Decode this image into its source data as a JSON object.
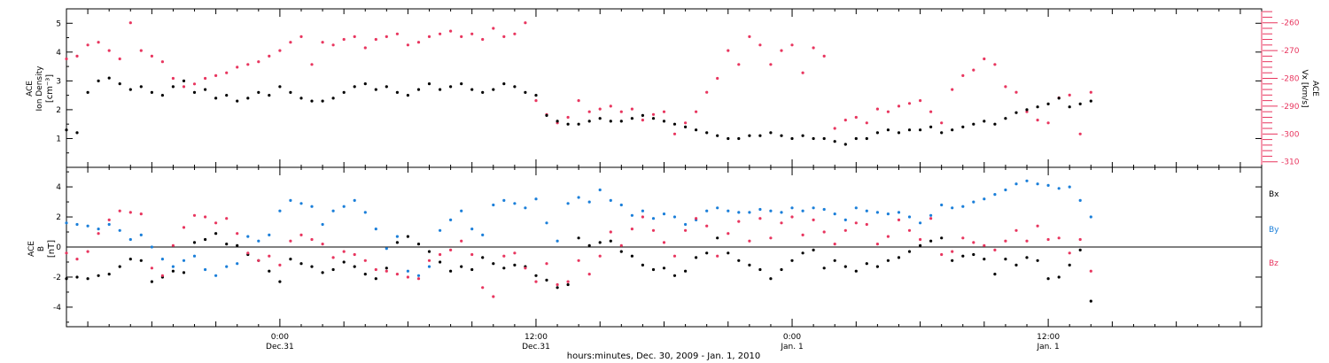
{
  "colors": {
    "ink": "#000000",
    "vx_series": "#e8365f",
    "by_series": "#1b7fd9",
    "bz_series": "#e8365f"
  },
  "chart_data": [
    {
      "type": "scatter",
      "panel": "plasma",
      "ylabel": [
        "ACE",
        "Ion Density",
        "[cm⁻³]"
      ],
      "ylim": [
        0,
        5.5
      ],
      "y_ticks": [
        1,
        2,
        3,
        4,
        5
      ],
      "xlim": [
        "2009-12-30 14:00",
        "2010-01-01 22:00"
      ],
      "right_axis": {
        "label": [
          "ACE",
          "Vx [km/s]"
        ],
        "ylim": [
          -312,
          -255
        ],
        "ticks": [
          -260,
          -270,
          -280,
          -290,
          -300,
          -310
        ]
      },
      "series": [
        {
          "axis": "left",
          "color": "#000000",
          "hours": [
            0,
            0.5,
            1,
            1.5,
            2,
            2.5,
            3,
            3.5,
            4,
            4.5,
            5,
            5.5,
            6,
            6.5,
            7,
            7.5,
            8,
            8.5,
            9,
            9.5,
            10,
            10.5,
            11,
            11.5,
            12,
            12.5,
            13,
            13.5,
            14,
            14.5,
            15,
            15.5,
            16,
            16.5,
            17,
            17.5,
            18,
            18.5,
            19,
            19.5,
            20,
            20.5,
            21,
            21.5,
            22,
            22.5,
            23,
            23.5,
            24,
            24.5,
            25,
            25.5,
            26,
            26.5,
            27,
            27.5,
            28,
            28.5,
            29,
            29.5,
            30,
            30.5,
            31,
            31.5,
            32,
            32.5,
            33,
            33.5,
            34,
            34.5,
            35,
            35.5,
            36,
            36.5,
            37,
            37.5,
            38,
            38.5,
            39,
            39.5,
            40,
            40.5,
            41,
            41.5,
            42,
            42.5,
            43,
            43.5,
            44,
            44.5,
            45,
            45.5,
            46,
            46.5,
            47,
            47.5,
            48
          ],
          "values": [
            1.3,
            1.2,
            2.6,
            3.0,
            3.1,
            2.9,
            2.7,
            2.8,
            2.6,
            2.5,
            2.8,
            3.0,
            2.6,
            2.7,
            2.4,
            2.5,
            2.3,
            2.4,
            2.6,
            2.5,
            2.8,
            2.6,
            2.4,
            2.3,
            2.3,
            2.4,
            2.6,
            2.8,
            2.9,
            2.7,
            2.8,
            2.6,
            2.5,
            2.7,
            2.9,
            2.7,
            2.8,
            2.9,
            2.7,
            2.6,
            2.7,
            2.9,
            2.8,
            2.6,
            2.5,
            1.8,
            1.6,
            1.5,
            1.5,
            1.6,
            1.7,
            1.6,
            1.6,
            1.7,
            1.8,
            1.7,
            1.6,
            1.5,
            1.4,
            1.3,
            1.2,
            1.1,
            1.0,
            1.0,
            1.1,
            1.1,
            1.2,
            1.1,
            1.0,
            1.1,
            1.0,
            1.0,
            0.9,
            0.8,
            1.0,
            1.0,
            1.2,
            1.3,
            1.2,
            1.3,
            1.3,
            1.4,
            1.2,
            1.3,
            1.4,
            1.5,
            1.6,
            1.5,
            1.7,
            1.9,
            2.0,
            2.1,
            2.2,
            2.4,
            2.1,
            2.2,
            2.3
          ]
        },
        {
          "axis": "right",
          "color": "#e8365f",
          "hours": [
            0,
            0.5,
            1,
            1.5,
            2,
            2.5,
            3,
            3.5,
            4,
            4.5,
            5,
            5.5,
            6,
            6.5,
            7,
            7.5,
            8,
            8.5,
            9,
            9.5,
            10,
            10.5,
            11,
            11.5,
            12,
            12.5,
            13,
            13.5,
            14,
            14.5,
            15,
            15.5,
            16,
            16.5,
            17,
            17.5,
            18,
            18.5,
            19,
            19.5,
            20,
            20.5,
            21,
            21.5,
            22,
            22.5,
            23,
            23.5,
            24,
            24.5,
            25,
            25.5,
            26,
            26.5,
            27,
            27.5,
            28,
            28.5,
            29,
            29.5,
            30,
            30.5,
            31,
            31.5,
            32,
            32.5,
            33,
            33.5,
            34,
            34.5,
            35,
            35.5,
            36,
            36.5,
            37,
            37.5,
            38,
            38.5,
            39,
            39.5,
            40,
            40.5,
            41,
            41.5,
            42,
            42.5,
            43,
            43.5,
            44,
            44.5,
            45,
            45.5,
            46,
            46.5,
            47,
            47.5,
            48
          ],
          "values": [
            -273,
            -272,
            -268,
            -267,
            -270,
            -273,
            -260,
            -270,
            -272,
            -274,
            -280,
            -283,
            -282,
            -280,
            -279,
            -278,
            -276,
            -275,
            -274,
            -272,
            -270,
            -267,
            -265,
            -275,
            -267,
            -268,
            -266,
            -265,
            -269,
            -266,
            -265,
            -264,
            -268,
            -267,
            -265,
            -264,
            -263,
            -265,
            -264,
            -266,
            -262,
            -265,
            -264,
            -260,
            -288,
            -293,
            -296,
            -294,
            -288,
            -292,
            -291,
            -290,
            -292,
            -291,
            -295,
            -293,
            -292,
            -300,
            -296,
            -292,
            -285,
            -280,
            -270,
            -275,
            -265,
            -268,
            -275,
            -270,
            -268,
            -278,
            -269,
            -272,
            -298,
            -295,
            -294,
            -296,
            -291,
            -292,
            -290,
            -289,
            -288,
            -292,
            -296,
            -284,
            -279,
            -277,
            -273,
            -275,
            -283,
            -285,
            -292,
            -295,
            -296,
            -287,
            -286,
            -300,
            -285
          ]
        }
      ]
    },
    {
      "type": "scatter",
      "panel": "magnetic-field",
      "ylabel": [
        "ACE",
        "B",
        "[nT]"
      ],
      "ylim": [
        -5.3,
        5.3
      ],
      "y_ticks": [
        -4,
        -2,
        0,
        2,
        4
      ],
      "zero_line": true,
      "xlim": [
        "2009-12-30 14:00",
        "2010-01-01 22:00"
      ],
      "x_tick_labels": [
        {
          "hours": 10,
          "time": "0:00",
          "date": "Dec.31"
        },
        {
          "hours": 22,
          "time": "12:00",
          "date": "Dec.31"
        },
        {
          "hours": 34,
          "time": "0:00",
          "date": "Jan. 1"
        },
        {
          "hours": 46,
          "time": "12:00",
          "date": "Jan. 1"
        }
      ],
      "xlabel": "hours:minutes, Dec. 30, 2009 - Jan. 1, 2010",
      "legend": [
        "Bx",
        "By",
        "Bz"
      ],
      "legend_placement": "right",
      "series": [
        {
          "name": "Bx",
          "color": "#000000",
          "hours": [
            0,
            0.5,
            1,
            1.5,
            2,
            2.5,
            3,
            3.5,
            4,
            4.5,
            5,
            5.5,
            6,
            6.5,
            7,
            7.5,
            8,
            8.5,
            9,
            9.5,
            10,
            10.5,
            11,
            11.5,
            12,
            12.5,
            13,
            13.5,
            14,
            14.5,
            15,
            15.5,
            16,
            16.5,
            17,
            17.5,
            18,
            18.5,
            19,
            19.5,
            20,
            20.5,
            21,
            21.5,
            22,
            22.5,
            23,
            23.5,
            24,
            24.5,
            25,
            25.5,
            26,
            26.5,
            27,
            27.5,
            28,
            28.5,
            29,
            29.5,
            30,
            30.5,
            31,
            31.5,
            32,
            32.5,
            33,
            33.5,
            34,
            34.5,
            35,
            35.5,
            36,
            36.5,
            37,
            37.5,
            38,
            38.5,
            39,
            39.5,
            40,
            40.5,
            41,
            41.5,
            42,
            42.5,
            43,
            43.5,
            44,
            44.5,
            45,
            45.5,
            46,
            46.5,
            47,
            47.5,
            48
          ],
          "values": [
            -2.1,
            -2.0,
            -2.1,
            -1.9,
            -1.8,
            -1.3,
            -0.8,
            -0.9,
            -2.3,
            -2.0,
            -1.6,
            -1.7,
            0.3,
            0.5,
            0.9,
            0.2,
            0.1,
            -0.5,
            -0.9,
            -1.6,
            -2.3,
            -0.8,
            -1.1,
            -1.3,
            -1.7,
            -1.5,
            -1.0,
            -1.3,
            -1.8,
            -2.1,
            -1.4,
            0.3,
            0.7,
            0.2,
            -0.3,
            -1.0,
            -1.6,
            -1.3,
            -1.5,
            -0.7,
            -1.1,
            -1.4,
            -1.2,
            -1.3,
            -1.9,
            -2.2,
            -2.7,
            -2.5,
            0.6,
            0.1,
            0.3,
            0.4,
            -0.3,
            -0.6,
            -1.2,
            -1.5,
            -1.4,
            -1.9,
            -1.6,
            -0.7,
            -0.4,
            0.6,
            -0.4,
            -0.9,
            -1.2,
            -1.5,
            -2.1,
            -1.5,
            -0.9,
            -0.4,
            -0.2,
            -1.4,
            -0.9,
            -1.3,
            -1.6,
            -1.1,
            -1.3,
            -0.9,
            -0.7,
            -0.3,
            0.1,
            0.4,
            0.6,
            -0.9,
            -0.6,
            -0.5,
            -0.8,
            -1.8,
            -0.8,
            -1.2,
            -0.7,
            -0.9,
            -2.1,
            -2.0,
            -1.2,
            -0.2,
            -3.6
          ]
        },
        {
          "name": "By",
          "color": "#1b7fd9",
          "hours": [
            0,
            0.5,
            1,
            1.5,
            2,
            2.5,
            3,
            3.5,
            4,
            4.5,
            5,
            5.5,
            6,
            6.5,
            7,
            7.5,
            8,
            8.5,
            9,
            9.5,
            10,
            10.5,
            11,
            11.5,
            12,
            12.5,
            13,
            13.5,
            14,
            14.5,
            15,
            15.5,
            16,
            16.5,
            17,
            17.5,
            18,
            18.5,
            19,
            19.5,
            20,
            20.5,
            21,
            21.5,
            22,
            22.5,
            23,
            23.5,
            24,
            24.5,
            25,
            25.5,
            26,
            26.5,
            27,
            27.5,
            28,
            28.5,
            29,
            29.5,
            30,
            30.5,
            31,
            31.5,
            32,
            32.5,
            33,
            33.5,
            34,
            34.5,
            35,
            35.5,
            36,
            36.5,
            37,
            37.5,
            38,
            38.5,
            39,
            39.5,
            40,
            40.5,
            41,
            41.5,
            42,
            42.5,
            43,
            43.5,
            44,
            44.5,
            45,
            45.5,
            46,
            46.5,
            47,
            47.5,
            48
          ],
          "values": [
            1.6,
            1.5,
            1.4,
            1.2,
            1.5,
            1.1,
            0.5,
            0.8,
            0.0,
            -0.8,
            -1.3,
            -0.9,
            -0.6,
            -1.5,
            -1.9,
            -1.3,
            -1.1,
            0.7,
            0.4,
            0.8,
            2.4,
            3.1,
            2.9,
            2.7,
            1.5,
            2.4,
            2.7,
            3.1,
            2.3,
            1.2,
            -0.1,
            0.7,
            -1.6,
            -1.9,
            -1.3,
            1.1,
            1.8,
            2.4,
            1.2,
            0.8,
            2.8,
            3.1,
            2.9,
            2.6,
            3.2,
            1.6,
            0.4,
            2.9,
            3.3,
            3.0,
            3.8,
            3.1,
            2.8,
            2.1,
            2.4,
            1.9,
            2.2,
            2.0,
            1.5,
            1.8,
            2.4,
            2.6,
            2.4,
            2.3,
            2.3,
            2.5,
            2.4,
            2.3,
            2.6,
            2.4,
            2.6,
            2.5,
            2.2,
            1.8,
            2.6,
            2.4,
            2.3,
            2.2,
            2.3,
            2.0,
            1.6,
            2.1,
            2.8,
            2.6,
            2.7,
            3.0,
            3.2,
            3.5,
            3.8,
            4.2,
            4.4,
            4.2,
            4.1,
            3.9,
            4.0,
            3.1,
            2.0
          ]
        },
        {
          "name": "Bz",
          "color": "#e8365f",
          "hours": [
            0,
            0.5,
            1,
            1.5,
            2,
            2.5,
            3,
            3.5,
            4,
            4.5,
            5,
            5.5,
            6,
            6.5,
            7,
            7.5,
            8,
            8.5,
            9,
            9.5,
            10,
            10.5,
            11,
            11.5,
            12,
            12.5,
            13,
            13.5,
            14,
            14.5,
            15,
            15.5,
            16,
            16.5,
            17,
            17.5,
            18,
            18.5,
            19,
            19.5,
            20,
            20.5,
            21,
            21.5,
            22,
            22.5,
            23,
            23.5,
            24,
            24.5,
            25,
            25.5,
            26,
            26.5,
            27,
            27.5,
            28,
            28.5,
            29,
            29.5,
            30,
            30.5,
            31,
            31.5,
            32,
            32.5,
            33,
            33.5,
            34,
            34.5,
            35,
            35.5,
            36,
            36.5,
            37,
            37.5,
            38,
            38.5,
            39,
            39.5,
            40,
            40.5,
            41,
            41.5,
            42,
            42.5,
            43,
            43.5,
            44,
            44.5,
            45,
            45.5,
            46,
            46.5,
            47,
            47.5,
            48
          ],
          "values": [
            -0.4,
            -0.8,
            -0.3,
            0.9,
            1.8,
            2.4,
            2.3,
            2.2,
            -1.4,
            -1.9,
            0.1,
            1.3,
            2.1,
            2.0,
            1.6,
            1.9,
            0.9,
            -0.4,
            -0.9,
            -0.6,
            -1.2,
            0.4,
            0.8,
            0.5,
            0.2,
            -0.7,
            -0.3,
            -0.5,
            -0.9,
            -1.5,
            -1.6,
            -1.8,
            -2.0,
            -2.1,
            -0.9,
            -0.5,
            -0.2,
            0.4,
            -0.5,
            -2.7,
            -3.3,
            -0.6,
            -0.4,
            -1.4,
            -2.3,
            -1.1,
            -2.5,
            -2.3,
            -0.9,
            -1.8,
            -0.6,
            1.0,
            0.1,
            1.2,
            2.0,
            1.1,
            0.3,
            -0.6,
            1.1,
            1.9,
            1.4,
            -0.6,
            0.9,
            1.7,
            0.4,
            1.9,
            0.6,
            1.6,
            2.0,
            0.8,
            1.8,
            1.0,
            0.2,
            1.1,
            1.6,
            1.5,
            0.2,
            0.7,
            1.8,
            1.1,
            0.5,
            1.9,
            -0.5,
            -0.3,
            0.6,
            0.3,
            0.1,
            -0.2,
            0.4,
            1.1,
            0.4,
            1.4,
            0.5,
            0.6,
            -0.4,
            0.5,
            -1.6
          ]
        }
      ]
    }
  ]
}
